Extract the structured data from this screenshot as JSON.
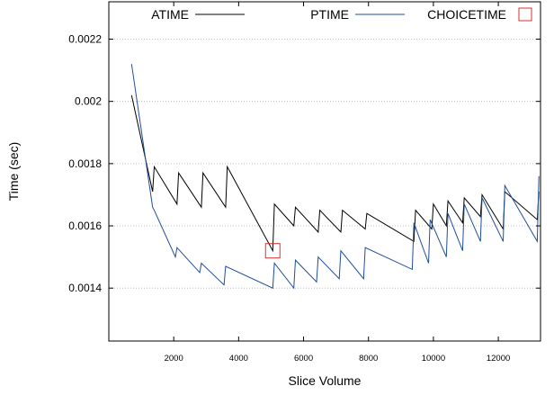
{
  "chart_data": {
    "type": "line",
    "xlabel": "Slice Volume",
    "ylabel": "Time (sec)",
    "xlim": [
      0,
      13300
    ],
    "ylim": [
      0.00123,
      0.00232
    ],
    "x_ticks": [
      2000,
      4000,
      6000,
      8000,
      10000,
      12000
    ],
    "y_ticks": [
      0.0014,
      0.0016,
      0.0018,
      0.002,
      0.0022
    ],
    "x_tick_labels": [
      "2000",
      "4000",
      "6000",
      "8000",
      "10000",
      "12000"
    ],
    "y_tick_labels": [
      "0.0014",
      "0.0016",
      "0.0018",
      "0.002",
      "0.0022"
    ],
    "grid": true,
    "legend_placement": "top",
    "colors": {
      "atime": "#000000",
      "ptime": "#1f4e9a",
      "choicetime": "#e03030"
    },
    "series": [
      {
        "name": "ATIME",
        "points": [
          [
            700,
            0.00202
          ],
          [
            1350,
            0.00171
          ],
          [
            1400,
            0.00179
          ],
          [
            2100,
            0.00167
          ],
          [
            2150,
            0.00177
          ],
          [
            2850,
            0.00166
          ],
          [
            2900,
            0.00177
          ],
          [
            3600,
            0.00166
          ],
          [
            3650,
            0.00179
          ],
          [
            5050,
            0.00152
          ],
          [
            5100,
            0.00167
          ],
          [
            5700,
            0.0016
          ],
          [
            5750,
            0.00166
          ],
          [
            6450,
            0.00158
          ],
          [
            6500,
            0.00165
          ],
          [
            7150,
            0.00158
          ],
          [
            7200,
            0.00165
          ],
          [
            7900,
            0.00159
          ],
          [
            7950,
            0.00164
          ],
          [
            9400,
            0.00155
          ],
          [
            9450,
            0.00165
          ],
          [
            9950,
            0.00159
          ],
          [
            10000,
            0.00167
          ],
          [
            10400,
            0.0016
          ],
          [
            10450,
            0.00168
          ],
          [
            10900,
            0.00161
          ],
          [
            10950,
            0.00169
          ],
          [
            11450,
            0.00163
          ],
          [
            11500,
            0.0017
          ],
          [
            12150,
            0.00159
          ],
          [
            12200,
            0.00171
          ],
          [
            13200,
            0.00162
          ],
          [
            13250,
            0.00171
          ]
        ]
      },
      {
        "name": "PTIME",
        "points": [
          [
            700,
            0.00212
          ],
          [
            1350,
            0.00166
          ],
          [
            1400,
            0.00165
          ],
          [
            2050,
            0.0015
          ],
          [
            2100,
            0.00153
          ],
          [
            2800,
            0.00145
          ],
          [
            2850,
            0.00148
          ],
          [
            3550,
            0.00141
          ],
          [
            3600,
            0.00147
          ],
          [
            5050,
            0.0014
          ],
          [
            5100,
            0.00148
          ],
          [
            5700,
            0.0014
          ],
          [
            5750,
            0.00149
          ],
          [
            6400,
            0.00142
          ],
          [
            6450,
            0.0015
          ],
          [
            7100,
            0.00143
          ],
          [
            7150,
            0.00152
          ],
          [
            7850,
            0.00143
          ],
          [
            7900,
            0.00153
          ],
          [
            9350,
            0.00146
          ],
          [
            9400,
            0.00161
          ],
          [
            9850,
            0.00148
          ],
          [
            9900,
            0.00162
          ],
          [
            10400,
            0.0015
          ],
          [
            10450,
            0.00164
          ],
          [
            10900,
            0.00152
          ],
          [
            10950,
            0.00167
          ],
          [
            11450,
            0.00155
          ],
          [
            11500,
            0.00169
          ],
          [
            12150,
            0.00155
          ],
          [
            12200,
            0.00173
          ],
          [
            13200,
            0.00155
          ],
          [
            13250,
            0.00176
          ]
        ]
      },
      {
        "name": "CHOICETIME",
        "marker": "square",
        "points": [
          [
            5050,
            0.00152
          ]
        ]
      }
    ]
  }
}
